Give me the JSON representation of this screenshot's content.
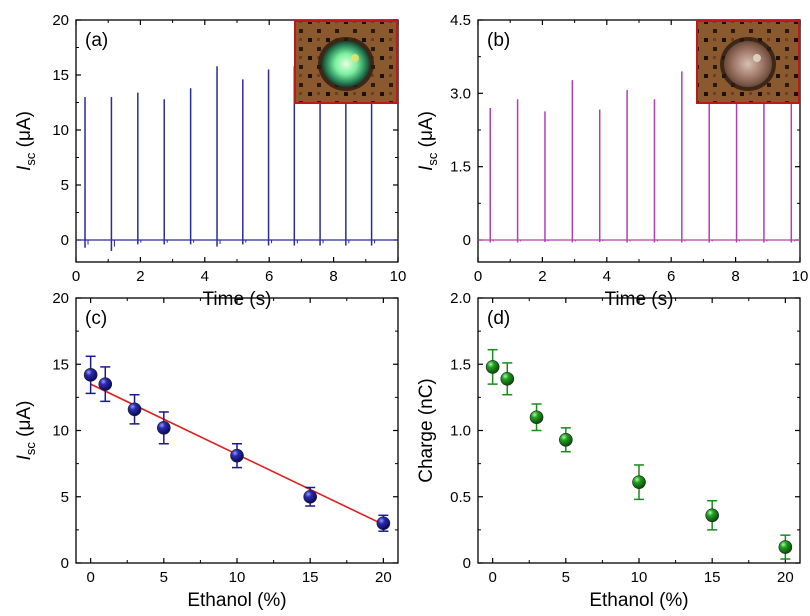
{
  "chart_data": [
    {
      "type": "line",
      "panel_label": "(a)",
      "xlabel": "Time (s)",
      "ylabel": "I",
      "ylabel_sub": "sc",
      "ylabel_unit": " (μA)",
      "xlim": [
        0,
        10
      ],
      "ylim": [
        -2,
        20
      ],
      "xticks": [
        "0",
        "2",
        "4",
        "6",
        "8",
        "10"
      ],
      "yticks": [
        "0",
        "5",
        "10",
        "15",
        "20"
      ],
      "color": "#2b2b9a",
      "inset": "green-glowing-droplet-photo",
      "pulses": [
        {
          "t": 0.28,
          "peak": 13.0,
          "trough": -0.7
        },
        {
          "t": 1.1,
          "peak": 13.0,
          "trough": -1.0
        },
        {
          "t": 1.92,
          "peak": 13.4,
          "trough": -0.4
        },
        {
          "t": 2.74,
          "peak": 12.8,
          "trough": -0.4
        },
        {
          "t": 3.56,
          "peak": 13.8,
          "trough": -0.4
        },
        {
          "t": 4.38,
          "peak": 15.8,
          "trough": -0.6
        },
        {
          "t": 5.18,
          "peak": 14.6,
          "trough": -0.4
        },
        {
          "t": 5.98,
          "peak": 15.5,
          "trough": -0.5
        },
        {
          "t": 6.78,
          "peak": 15.8,
          "trough": -0.5
        },
        {
          "t": 7.58,
          "peak": 14.5,
          "trough": -0.5
        },
        {
          "t": 8.38,
          "peak": 14.5,
          "trough": -0.5
        },
        {
          "t": 9.18,
          "peak": 14.0,
          "trough": -0.5
        }
      ]
    },
    {
      "type": "line",
      "panel_label": "(b)",
      "xlabel": "Time (s)",
      "ylabel": "I",
      "ylabel_sub": "sc",
      "ylabel_unit": " (μA)",
      "xlim": [
        0,
        10
      ],
      "ylim": [
        -0.45,
        4.5
      ],
      "xticks": [
        "0",
        "2",
        "4",
        "6",
        "8",
        "10"
      ],
      "yticks": [
        "0",
        "1.5",
        "3.0",
        "4.5"
      ],
      "color": "#b040b0",
      "inset": "clear-droplet-photo",
      "pulses": [
        {
          "t": 0.38,
          "peak": 2.7,
          "trough": -0.05
        },
        {
          "t": 1.23,
          "peak": 2.88,
          "trough": -0.05
        },
        {
          "t": 2.08,
          "peak": 2.63,
          "trough": -0.04
        },
        {
          "t": 2.93,
          "peak": 3.27,
          "trough": -0.05
        },
        {
          "t": 3.78,
          "peak": 2.67,
          "trough": -0.04
        },
        {
          "t": 4.63,
          "peak": 3.07,
          "trough": -0.05
        },
        {
          "t": 5.48,
          "peak": 2.88,
          "trough": -0.05
        },
        {
          "t": 6.33,
          "peak": 3.45,
          "trough": -0.05
        },
        {
          "t": 7.18,
          "peak": 3.05,
          "trough": -0.05
        },
        {
          "t": 8.03,
          "peak": 2.95,
          "trough": -0.05
        },
        {
          "t": 8.88,
          "peak": 3.05,
          "trough": -0.05
        },
        {
          "t": 9.73,
          "peak": 2.8,
          "trough": -0.05
        }
      ]
    },
    {
      "type": "scatter",
      "panel_label": "(c)",
      "xlabel": "Ethanol (%)",
      "ylabel": "I",
      "ylabel_sub": "sc",
      "ylabel_unit": " (μA)",
      "xlim": [
        -1,
        21
      ],
      "ylim": [
        0,
        20
      ],
      "xticks": [
        "0",
        "5",
        "10",
        "15",
        "20"
      ],
      "yticks": [
        "0",
        "5",
        "10",
        "15",
        "20"
      ],
      "color": "#1a1a8c",
      "fit_color": "#e02020",
      "fit_line": {
        "x": [
          0,
          20
        ],
        "y": [
          13.5,
          2.9
        ]
      },
      "points": [
        {
          "x": 0,
          "y": 14.2,
          "err": 1.4
        },
        {
          "x": 1,
          "y": 13.5,
          "err": 1.3
        },
        {
          "x": 3,
          "y": 11.6,
          "err": 1.1
        },
        {
          "x": 5,
          "y": 10.2,
          "err": 1.2
        },
        {
          "x": 10,
          "y": 8.1,
          "err": 0.9
        },
        {
          "x": 15,
          "y": 5.0,
          "err": 0.7
        },
        {
          "x": 20,
          "y": 3.0,
          "err": 0.6
        }
      ]
    },
    {
      "type": "scatter",
      "panel_label": "(d)",
      "xlabel": "Ethanol (%)",
      "ylabel": "Charge (nC)",
      "ylabel_sub": "",
      "ylabel_unit": "",
      "xlim": [
        -1,
        21
      ],
      "ylim": [
        0,
        2.0
      ],
      "xticks": [
        "0",
        "5",
        "10",
        "15",
        "20"
      ],
      "yticks": [
        "0",
        "0.5",
        "1.0",
        "1.5",
        "2.0"
      ],
      "color": "#1a8a1a",
      "points": [
        {
          "x": 0,
          "y": 1.48,
          "err": 0.13
        },
        {
          "x": 1,
          "y": 1.39,
          "err": 0.12
        },
        {
          "x": 3,
          "y": 1.1,
          "err": 0.1
        },
        {
          "x": 5,
          "y": 0.93,
          "err": 0.09
        },
        {
          "x": 10,
          "y": 0.61,
          "err": 0.13
        },
        {
          "x": 15,
          "y": 0.36,
          "err": 0.11
        },
        {
          "x": 20,
          "y": 0.12,
          "err": 0.09
        }
      ]
    }
  ]
}
